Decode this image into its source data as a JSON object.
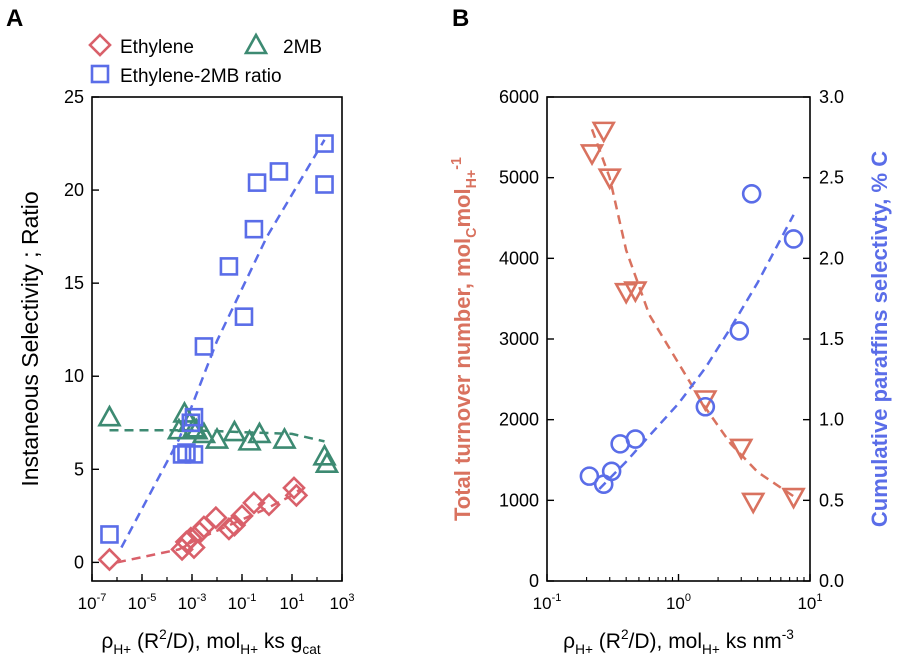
{
  "chart_data": [
    {
      "panel_label": "A",
      "type": "scatter",
      "xscale": "log",
      "xlim": [
        1e-07,
        1000
      ],
      "ylim": [
        -1,
        25
      ],
      "xticks": [
        1e-07,
        1e-05,
        0.001,
        0.1,
        10,
        1000
      ],
      "xtick_labels": [
        {
          "base": "10",
          "exp": "-7"
        },
        {
          "base": "10",
          "exp": "-5"
        },
        {
          "base": "10",
          "exp": "-3"
        },
        {
          "base": "10",
          "exp": "-1"
        },
        {
          "base": "10",
          "exp": "1"
        },
        {
          "base": "10",
          "exp": "3"
        }
      ],
      "yticks": [
        0,
        5,
        10,
        15,
        20,
        25
      ],
      "ytick_labels": [
        "0",
        "5",
        "10",
        "15",
        "20",
        "25"
      ],
      "ylabel": "Instaneous Selectivity ; Ratio",
      "xlabel": {
        "a": "ρ",
        "a_sub": "H+",
        "b": " (R",
        "b_sup": "2",
        "c": "/D), mol",
        "c_sub": "H+",
        "d": " ks g",
        "d_sub": "cat"
      },
      "legend_position": "top",
      "series": [
        {
          "name": "Ethylene",
          "marker": "diamond",
          "color": "#d9606a",
          "x": [
            5e-07,
            0.0004,
            0.0006,
            0.0009,
            0.0012,
            0.002,
            0.003,
            0.009,
            0.03,
            0.05,
            0.1,
            0.3,
            1.2,
            12,
            15
          ],
          "y": [
            0.15,
            0.7,
            1.1,
            1.3,
            0.8,
            1.6,
            1.9,
            2.4,
            1.8,
            2.0,
            2.5,
            3.2,
            3.1,
            4.0,
            3.6
          ],
          "trend": {
            "x": [
              1e-06,
              0.0003,
              0.001,
              0.01,
              0.1,
              1,
              10,
              20
            ],
            "y": [
              0.0,
              0.7,
              1.1,
              1.7,
              2.3,
              2.9,
              3.6,
              3.9
            ]
          }
        },
        {
          "name": "2MB",
          "marker": "triangle",
          "color": "#3d8a72",
          "x": [
            5e-07,
            0.0005,
            0.0008,
            0.0012,
            0.0003,
            0.0015,
            0.003,
            0.01,
            0.05,
            0.2,
            0.5,
            5,
            200,
            250
          ],
          "y": [
            7.8,
            8.0,
            7.5,
            7.2,
            7.1,
            7.1,
            6.9,
            6.6,
            7.0,
            6.5,
            6.9,
            6.6,
            5.7,
            5.3
          ],
          "trend": {
            "x": [
              5e-07,
              0.001,
              0.1,
              10,
              200
            ],
            "y": [
              7.1,
              7.1,
              7.0,
              6.9,
              6.5
            ]
          }
        },
        {
          "name": "Ethylene-2MB ratio",
          "marker": "square",
          "color": "#5a6de8",
          "x": [
            5e-07,
            0.0004,
            0.0006,
            0.0009,
            0.0012,
            0.0012,
            0.003,
            0.03,
            0.12,
            0.3,
            0.4,
            3,
            200,
            200
          ],
          "y": [
            1.5,
            5.8,
            5.9,
            7.5,
            7.8,
            5.8,
            11.6,
            15.9,
            13.2,
            17.9,
            20.4,
            21.0,
            22.5,
            20.3
          ],
          "trend": {
            "x": [
              1.5e-06,
              0.0003,
              0.01,
              1,
              200
            ],
            "y": [
              0.8,
              6.6,
              11.9,
              17.5,
              22.7
            ]
          }
        }
      ]
    },
    {
      "panel_label": "B",
      "type": "scatter",
      "xscale": "log",
      "xlim": [
        0.1,
        10
      ],
      "xticks": [
        0.1,
        1,
        10
      ],
      "xtick_labels": [
        {
          "base": "10",
          "exp": "-1"
        },
        {
          "base": "10",
          "exp": "0"
        },
        {
          "base": "10",
          "exp": "1"
        }
      ],
      "ylim_left": [
        0,
        6000
      ],
      "yticks_left": [
        "0",
        "1000",
        "2000",
        "3000",
        "4000",
        "5000",
        "6000"
      ],
      "ylim_right": [
        0,
        3.0
      ],
      "yticks_right": [
        "0.0",
        "0.5",
        "1.0",
        "1.5",
        "2.0",
        "2.5",
        "3.0"
      ],
      "ylabel_left": {
        "a": "Total turnover number, mol",
        "a_sub": "C",
        "b": "mol",
        "b_sub": "H+",
        "b_sup": "-1"
      },
      "ylabel_right": "Cumulative paraffins selectivty, % C",
      "xlabel": {
        "a": "ρ",
        "a_sub": "H+",
        "b": " (R",
        "b_sup": "2",
        "c": "/D), mol",
        "c_sub": "H+",
        "d": " ks nm",
        "d_sup": "-3"
      },
      "series": [
        {
          "axis": "left",
          "marker": "triangle-down",
          "color": "#d9725f",
          "x": [
            0.22,
            0.27,
            0.3,
            0.4,
            0.47,
            1.6,
            3.0,
            3.7,
            7.5
          ],
          "y": [
            5300,
            5580,
            5000,
            3580,
            3600,
            2250,
            1650,
            980,
            1040
          ],
          "trend": {
            "x": [
              0.22,
              0.3,
              0.4,
              0.6,
              1.0,
              1.6,
              2.5,
              4,
              7.5
            ],
            "y": [
              5600,
              5000,
              4100,
              3300,
              2700,
              2150,
              1700,
              1350,
              1050
            ]
          }
        },
        {
          "axis": "right",
          "marker": "circle",
          "color": "#5a6de8",
          "x": [
            0.21,
            0.27,
            0.31,
            0.36,
            0.47,
            1.6,
            2.9,
            3.6,
            7.5
          ],
          "y": [
            0.65,
            0.6,
            0.68,
            0.85,
            0.88,
            1.08,
            1.55,
            2.4,
            2.12
          ],
          "trend": {
            "x": [
              0.25,
              0.4,
              0.6,
              1.0,
              1.6,
              2.5,
              4,
              7.5
            ],
            "y": [
              0.57,
              0.74,
              0.9,
              1.1,
              1.32,
              1.57,
              1.85,
              2.27
            ]
          }
        }
      ]
    }
  ]
}
